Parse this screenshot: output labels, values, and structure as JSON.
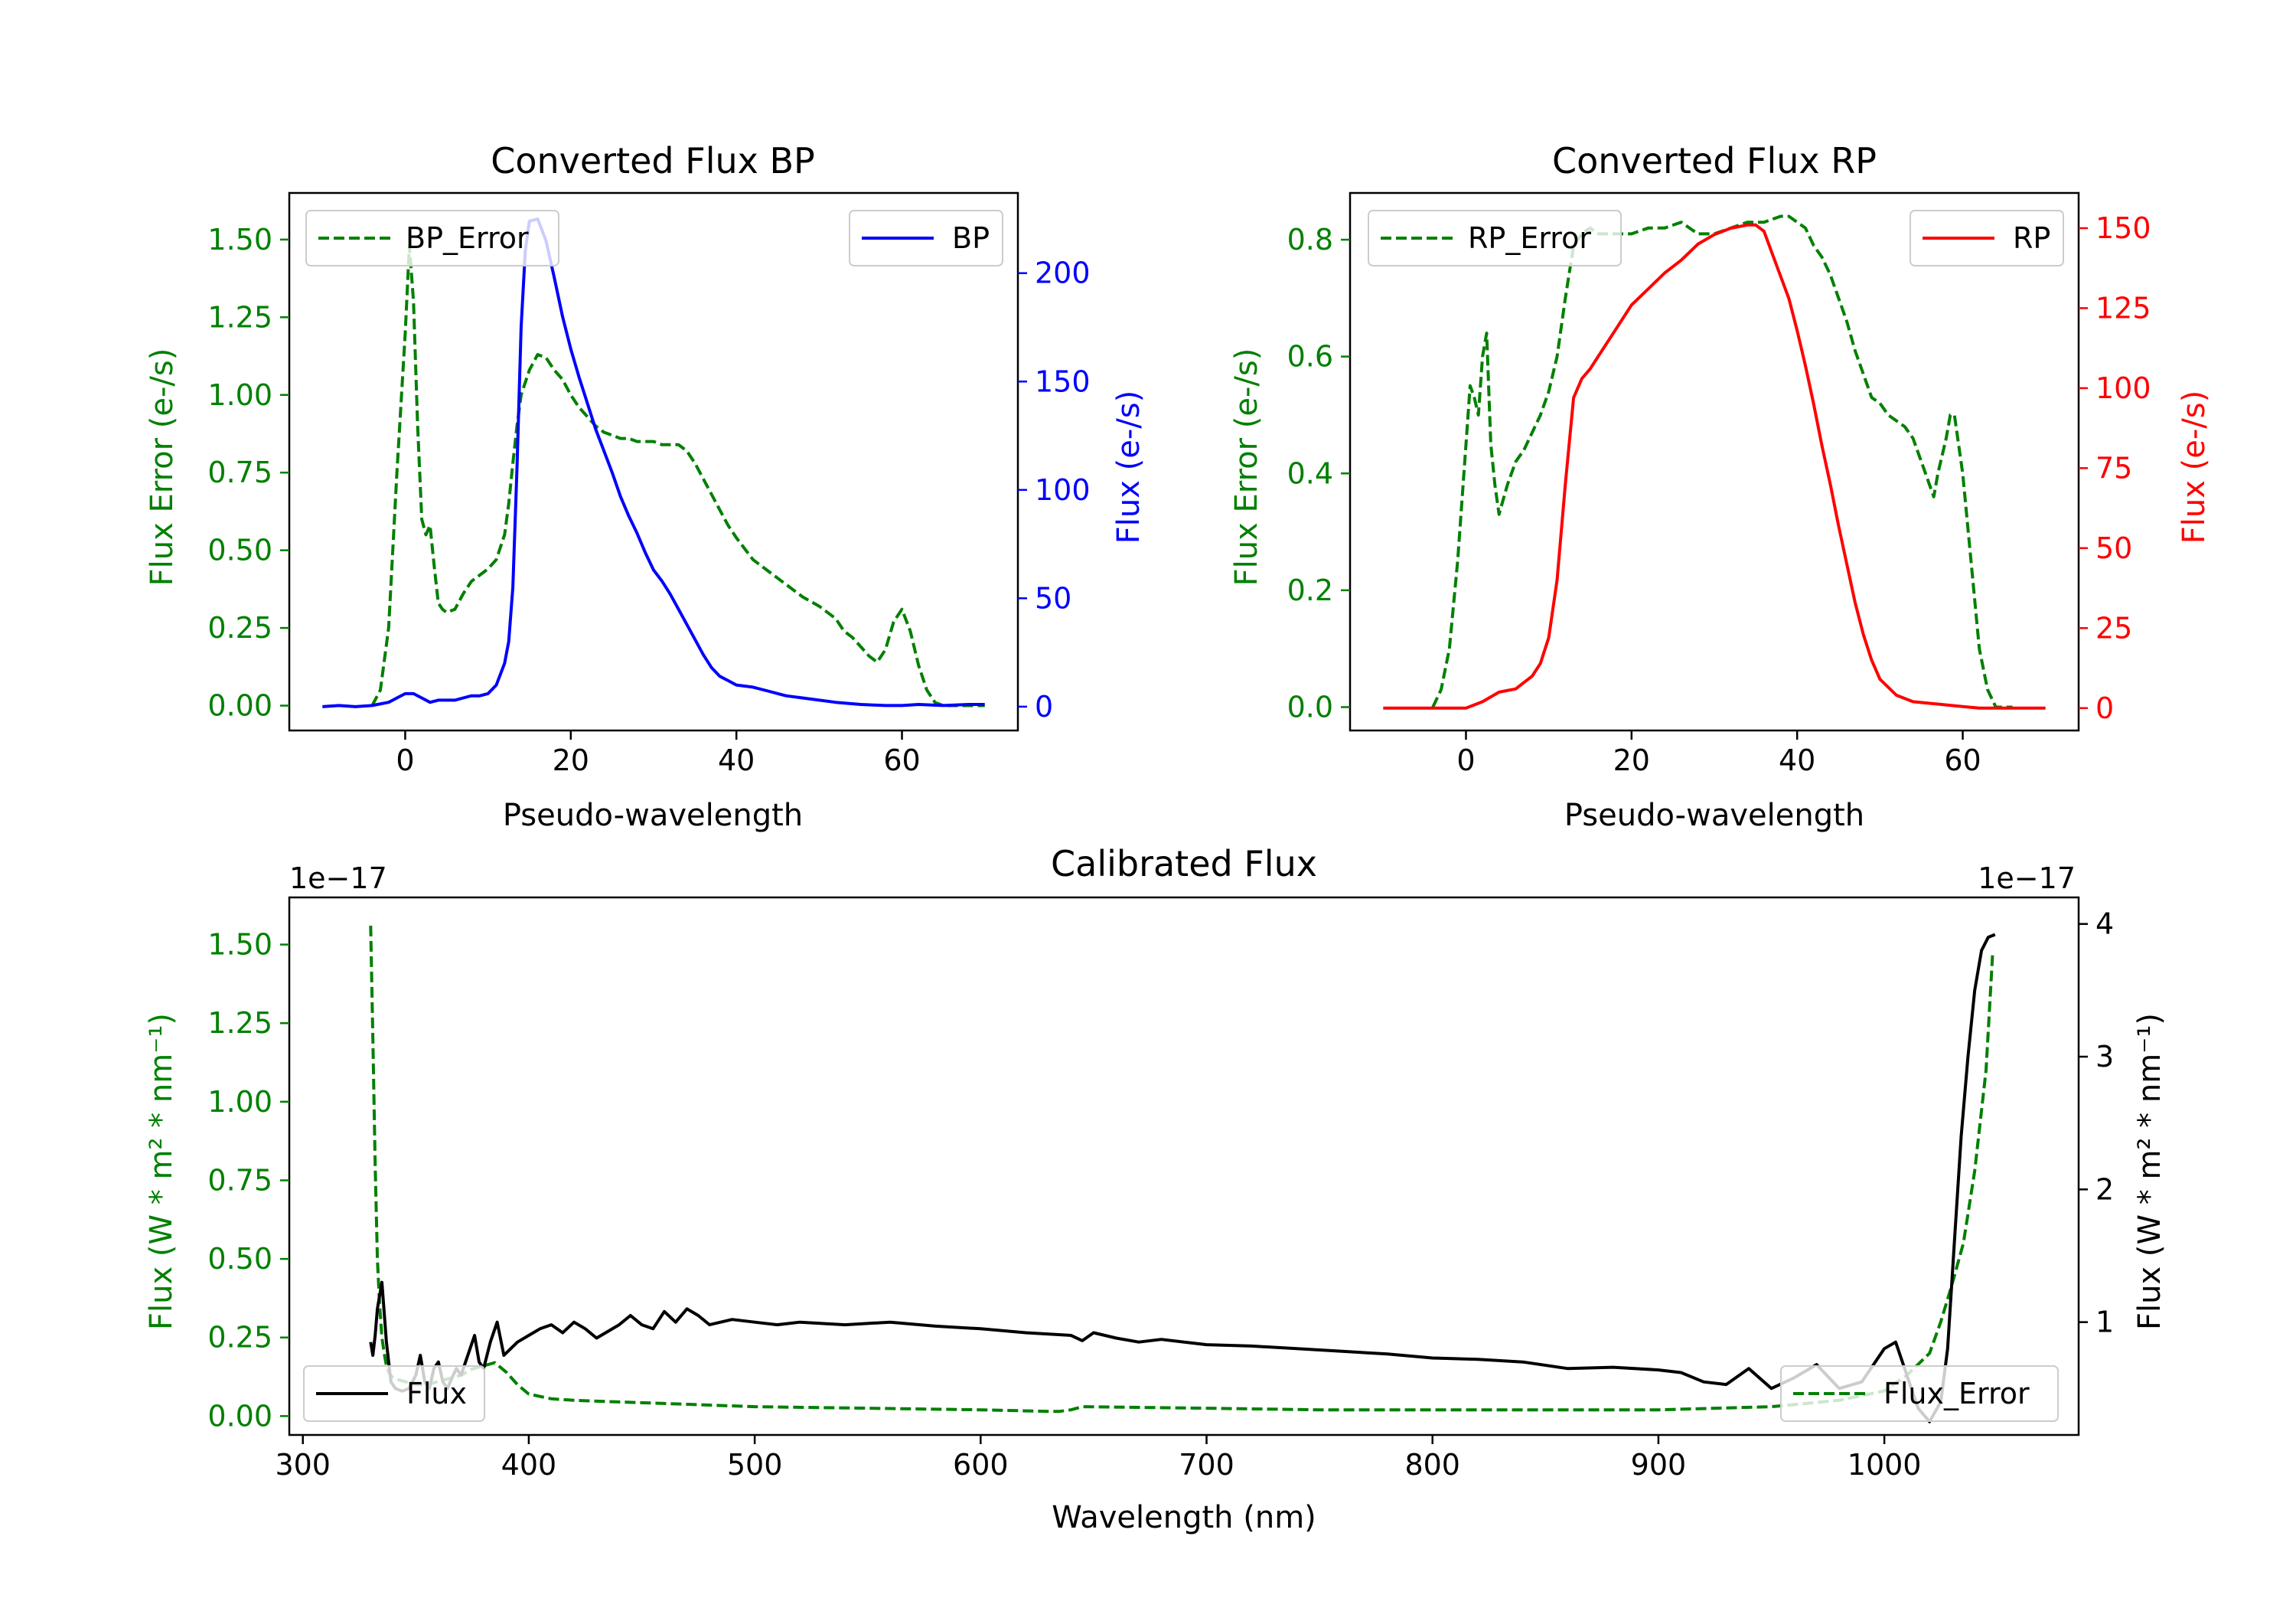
{
  "colors": {
    "error": "#008000",
    "bp": "#0000ff",
    "rp": "#ff0000",
    "flux": "#000000"
  },
  "chart_data": [
    {
      "id": "bp",
      "type": "line",
      "title": "Converted Flux BP",
      "xlabel": "Pseudo-wavelength",
      "ylabel_left": "Flux Error (e-/s)",
      "ylabel_right": "Flux (e-/s)",
      "xlim": [
        -14,
        74
      ],
      "ylim_left": [
        -0.08,
        1.65
      ],
      "ylim_right": [
        -11,
        237
      ],
      "xticks": [
        0,
        20,
        40,
        60
      ],
      "yticks_left": [
        "0.00",
        "0.25",
        "0.50",
        "0.75",
        "1.00",
        "1.25",
        "1.50"
      ],
      "yticks_right": [
        "0",
        "50",
        "100",
        "150",
        "200"
      ],
      "legend_left": "BP_Error",
      "legend_right": "BP",
      "series": [
        {
          "name": "BP_Error",
          "axis": "left",
          "style": "dashed",
          "color": "#008000",
          "x": [
            -4,
            -3,
            -2,
            -1,
            0,
            0.5,
            1,
            1.5,
            2,
            2.5,
            3,
            3.5,
            4,
            4.5,
            5,
            6,
            7,
            8,
            9,
            10,
            11,
            12,
            12.5,
            13,
            13.5,
            14,
            15,
            16,
            17,
            18,
            19,
            20,
            21,
            22,
            23,
            24,
            25,
            26,
            27,
            28,
            29,
            30,
            31,
            32,
            33,
            34,
            35,
            36,
            37,
            38,
            39,
            40,
            42,
            44,
            46,
            48,
            50,
            52,
            53,
            54,
            55,
            56,
            57,
            58,
            59,
            60,
            61,
            62,
            63,
            64,
            65,
            66,
            67,
            68,
            69,
            70
          ],
          "values": [
            0.0,
            0.05,
            0.25,
            0.75,
            1.2,
            1.48,
            1.3,
            0.9,
            0.6,
            0.55,
            0.58,
            0.45,
            0.33,
            0.31,
            0.3,
            0.31,
            0.36,
            0.4,
            0.42,
            0.44,
            0.47,
            0.55,
            0.65,
            0.78,
            0.9,
            1.0,
            1.08,
            1.13,
            1.12,
            1.08,
            1.05,
            1.0,
            0.96,
            0.93,
            0.9,
            0.88,
            0.87,
            0.86,
            0.86,
            0.85,
            0.85,
            0.85,
            0.84,
            0.84,
            0.84,
            0.82,
            0.78,
            0.73,
            0.68,
            0.63,
            0.58,
            0.54,
            0.47,
            0.43,
            0.39,
            0.35,
            0.32,
            0.28,
            0.24,
            0.22,
            0.19,
            0.16,
            0.14,
            0.18,
            0.27,
            0.31,
            0.24,
            0.13,
            0.05,
            0.01,
            0.0,
            0.0,
            0.0,
            0.0,
            0.0,
            0.0
          ]
        },
        {
          "name": "BP",
          "axis": "right",
          "style": "solid",
          "color": "#0000ff",
          "x": [
            -10,
            -8,
            -6,
            -4,
            -2,
            -1,
            0,
            1,
            2,
            3,
            4,
            5,
            6,
            7,
            8,
            9,
            10,
            11,
            12,
            12.5,
            13,
            13.5,
            14,
            14.5,
            15,
            16,
            17,
            18,
            19,
            20,
            21,
            22,
            23,
            24,
            25,
            26,
            27,
            28,
            29,
            30,
            31,
            32,
            33,
            34,
            35,
            36,
            37,
            38,
            39,
            40,
            42,
            44,
            46,
            48,
            50,
            52,
            55,
            58,
            60,
            62,
            65,
            68,
            70
          ],
          "values": [
            0,
            0.5,
            0,
            0.5,
            2,
            4,
            6,
            6,
            4,
            2,
            3,
            3,
            3,
            4,
            5,
            5,
            6,
            10,
            20,
            30,
            55,
            110,
            175,
            210,
            224,
            225,
            215,
            198,
            180,
            165,
            152,
            140,
            128,
            118,
            108,
            97,
            88,
            80,
            71,
            63,
            58,
            52,
            45,
            38,
            31,
            24,
            18,
            14,
            12,
            10,
            9,
            7,
            5,
            4,
            3,
            2,
            1,
            0.5,
            0.5,
            1,
            0.5,
            1,
            1
          ]
        }
      ]
    },
    {
      "id": "rp",
      "type": "line",
      "title": "Converted Flux RP",
      "xlabel": "Pseudo-wavelength",
      "ylabel_left": "Flux Error (e-/s)",
      "ylabel_right": "Flux (e-/s)",
      "xlim": [
        -14,
        74
      ],
      "ylim_left": [
        -0.04,
        0.88
      ],
      "ylim_right": [
        -7,
        161
      ],
      "xticks": [
        0,
        20,
        40,
        60
      ],
      "yticks_left": [
        "0.0",
        "0.2",
        "0.4",
        "0.6",
        "0.8"
      ],
      "yticks_right": [
        "0",
        "25",
        "50",
        "75",
        "100",
        "125",
        "150"
      ],
      "legend_left": "RP_Error",
      "legend_right": "RP",
      "series": [
        {
          "name": "RP_Error",
          "axis": "left",
          "style": "dashed",
          "color": "#008000",
          "x": [
            -4,
            -3,
            -2,
            -1,
            0,
            0.5,
            1,
            1.5,
            2,
            2.5,
            3,
            3.5,
            4,
            5,
            6,
            7,
            8,
            9,
            10,
            11,
            12,
            13,
            14,
            15,
            16,
            18,
            20,
            22,
            24,
            26,
            28,
            30,
            32,
            34,
            36,
            38,
            39,
            40,
            41,
            42,
            43,
            44,
            45,
            46,
            47,
            48,
            49,
            50,
            51,
            52,
            53,
            54,
            55,
            56,
            56.5,
            57,
            58,
            58.5,
            59,
            60,
            61,
            62,
            63,
            64,
            65,
            66
          ],
          "values": [
            0.0,
            0.03,
            0.1,
            0.25,
            0.45,
            0.55,
            0.53,
            0.5,
            0.6,
            0.64,
            0.45,
            0.38,
            0.33,
            0.38,
            0.42,
            0.44,
            0.47,
            0.5,
            0.54,
            0.6,
            0.7,
            0.79,
            0.81,
            0.82,
            0.81,
            0.81,
            0.81,
            0.82,
            0.82,
            0.83,
            0.81,
            0.81,
            0.82,
            0.83,
            0.83,
            0.84,
            0.84,
            0.83,
            0.82,
            0.79,
            0.77,
            0.74,
            0.7,
            0.66,
            0.61,
            0.57,
            0.53,
            0.52,
            0.5,
            0.49,
            0.48,
            0.46,
            0.42,
            0.38,
            0.36,
            0.4,
            0.46,
            0.5,
            0.5,
            0.4,
            0.25,
            0.1,
            0.03,
            0.0,
            0.0,
            0.0
          ]
        },
        {
          "name": "RP",
          "axis": "right",
          "style": "solid",
          "color": "#ff0000",
          "x": [
            -10,
            -5,
            0,
            2,
            4,
            6,
            7,
            8,
            9,
            10,
            11,
            12,
            13,
            14,
            15,
            16,
            18,
            20,
            22,
            24,
            26,
            28,
            30,
            32,
            34,
            35,
            36,
            37,
            38,
            39,
            40,
            41,
            42,
            43,
            44,
            45,
            46,
            47,
            48,
            49,
            50,
            52,
            54,
            56,
            58,
            60,
            62,
            64,
            66,
            70
          ],
          "values": [
            0,
            0,
            0,
            2,
            5,
            6,
            8,
            10,
            14,
            22,
            40,
            70,
            97,
            103,
            106,
            110,
            118,
            126,
            131,
            136,
            140,
            145,
            148,
            150,
            151,
            151,
            149,
            142,
            135,
            128,
            118,
            107,
            95,
            82,
            70,
            57,
            45,
            33,
            23,
            15,
            9,
            4,
            2,
            1.5,
            1,
            0.5,
            0,
            0,
            0,
            0
          ]
        }
      ]
    },
    {
      "id": "cal",
      "type": "line",
      "title": "Calibrated Flux",
      "xlabel": "Wavelength (nm)",
      "ylabel_left": "Flux (W * m² * nm⁻¹)",
      "ylabel_right": "Flux (W * m² * nm⁻¹)",
      "offset_left": "1e−17",
      "offset_right": "1e−17",
      "xlim": [
        294,
        1086
      ],
      "ylim_left": [
        -0.06,
        1.65
      ],
      "ylim_right": [
        0.15,
        4.2
      ],
      "xticks": [
        300,
        400,
        500,
        600,
        700,
        800,
        900,
        1000
      ],
      "yticks_left": [
        "0.00",
        "0.25",
        "0.50",
        "0.75",
        "1.00",
        "1.25",
        "1.50"
      ],
      "yticks_right": [
        "1",
        "2",
        "3",
        "4"
      ],
      "legend_left": "Flux",
      "legend_right": "Flux_Error",
      "series": [
        {
          "name": "Flux_Error",
          "axis": "left",
          "style": "dashed",
          "color": "#008000",
          "x": [
            330,
            331,
            332,
            333,
            334,
            335,
            336,
            337,
            338,
            340,
            345,
            350,
            355,
            360,
            365,
            370,
            375,
            380,
            385,
            390,
            395,
            400,
            410,
            420,
            440,
            460,
            480,
            500,
            550,
            600,
            630,
            635,
            640,
            645,
            700,
            750,
            800,
            850,
            900,
            950,
            980,
            1000,
            1010,
            1020,
            1025,
            1030,
            1035,
            1040,
            1045,
            1048
          ],
          "values": [
            1.56,
            1.2,
            0.8,
            0.5,
            0.35,
            0.25,
            0.2,
            0.16,
            0.14,
            0.12,
            0.11,
            0.1,
            0.1,
            0.11,
            0.12,
            0.13,
            0.15,
            0.16,
            0.17,
            0.14,
            0.1,
            0.07,
            0.055,
            0.05,
            0.045,
            0.04,
            0.035,
            0.03,
            0.025,
            0.02,
            0.015,
            0.015,
            0.02,
            0.03,
            0.025,
            0.02,
            0.02,
            0.02,
            0.02,
            0.03,
            0.05,
            0.08,
            0.13,
            0.2,
            0.3,
            0.42,
            0.55,
            0.78,
            1.1,
            1.48
          ]
        },
        {
          "name": "Flux",
          "axis": "right",
          "style": "solid",
          "color": "#000000",
          "x": [
            330,
            331,
            332,
            333,
            335,
            337,
            339,
            341,
            344,
            347,
            350,
            352,
            354,
            356,
            358,
            360,
            362,
            364,
            366,
            368,
            370,
            372,
            374,
            376,
            378,
            380,
            383,
            386,
            389,
            392,
            395,
            400,
            405,
            410,
            415,
            420,
            425,
            430,
            440,
            445,
            450,
            455,
            460,
            465,
            470,
            475,
            480,
            490,
            500,
            510,
            520,
            540,
            560,
            580,
            600,
            620,
            640,
            645,
            650,
            660,
            670,
            680,
            700,
            720,
            740,
            760,
            780,
            800,
            820,
            840,
            860,
            880,
            900,
            910,
            920,
            930,
            940,
            950,
            960,
            970,
            980,
            990,
            1000,
            1005,
            1010,
            1015,
            1020,
            1025,
            1028,
            1031,
            1034,
            1037,
            1040,
            1043,
            1046,
            1049
          ],
          "values": [
            0.85,
            0.75,
            0.9,
            1.1,
            1.3,
            0.85,
            0.55,
            0.5,
            0.48,
            0.5,
            0.6,
            0.75,
            0.55,
            0.5,
            0.65,
            0.7,
            0.55,
            0.5,
            0.58,
            0.65,
            0.6,
            0.7,
            0.8,
            0.9,
            0.7,
            0.65,
            0.85,
            1.0,
            0.75,
            0.8,
            0.85,
            0.9,
            0.95,
            0.98,
            0.92,
            1.0,
            0.95,
            0.88,
            0.98,
            1.05,
            0.98,
            0.95,
            1.08,
            1.0,
            1.1,
            1.05,
            0.98,
            1.02,
            1.0,
            0.98,
            1.0,
            0.98,
            1.0,
            0.97,
            0.95,
            0.92,
            0.9,
            0.86,
            0.92,
            0.88,
            0.85,
            0.87,
            0.83,
            0.82,
            0.8,
            0.78,
            0.76,
            0.73,
            0.72,
            0.7,
            0.65,
            0.66,
            0.64,
            0.62,
            0.55,
            0.53,
            0.65,
            0.5,
            0.58,
            0.68,
            0.5,
            0.55,
            0.8,
            0.85,
            0.6,
            0.35,
            0.25,
            0.4,
            0.8,
            1.6,
            2.4,
            3.0,
            3.5,
            3.8,
            3.9,
            3.92
          ]
        }
      ]
    }
  ]
}
